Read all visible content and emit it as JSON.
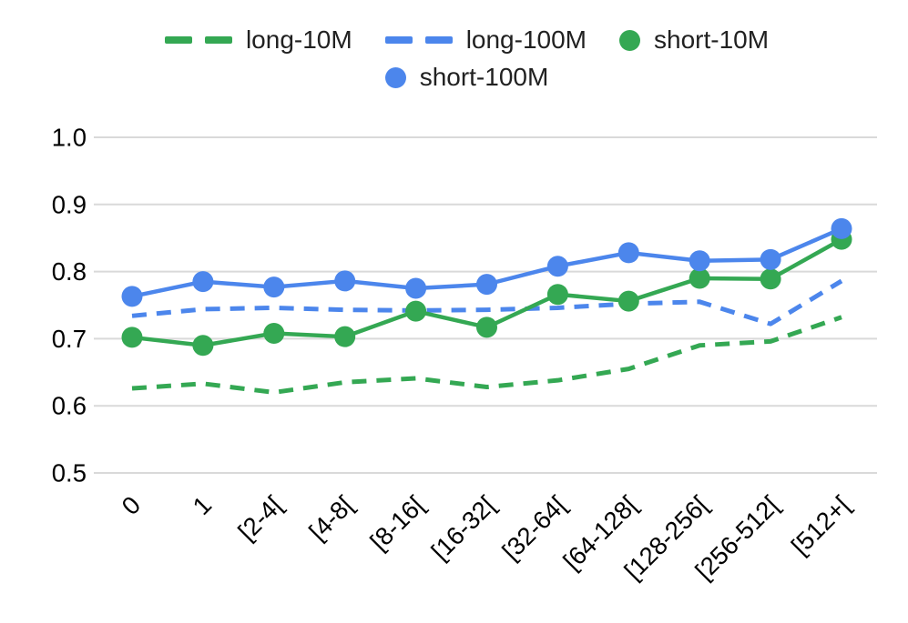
{
  "chart_data": {
    "type": "line",
    "title": "",
    "categories": [
      "0",
      "1",
      "[2-4[",
      "[4-8[",
      "[8-16[",
      "[16-32[",
      "[32-64[",
      "[64-128[",
      "[128-256[",
      "[256-512[",
      "[512+["
    ],
    "series": [
      {
        "name": "long-10M",
        "color": "#34a853",
        "line_style": "dashed",
        "point_markers": false,
        "values": [
          0.626,
          0.633,
          0.62,
          0.635,
          0.641,
          0.628,
          0.638,
          0.655,
          0.69,
          0.696,
          0.732
        ]
      },
      {
        "name": "long-100M",
        "color": "#4c86ec",
        "line_style": "dashed",
        "point_markers": false,
        "values": [
          0.734,
          0.744,
          0.746,
          0.743,
          0.742,
          0.743,
          0.746,
          0.752,
          0.755,
          0.722,
          0.786
        ]
      },
      {
        "name": "short-10M",
        "color": "#34a853",
        "line_style": "solid",
        "point_markers": true,
        "values": [
          0.702,
          0.69,
          0.708,
          0.703,
          0.741,
          0.717,
          0.766,
          0.756,
          0.79,
          0.789,
          0.848
        ]
      },
      {
        "name": "short-100M",
        "color": "#4c86ec",
        "line_style": "solid",
        "point_markers": true,
        "values": [
          0.763,
          0.785,
          0.777,
          0.786,
          0.775,
          0.781,
          0.808,
          0.828,
          0.816,
          0.818,
          0.864
        ]
      }
    ],
    "xlabel": "",
    "ylabel": "",
    "ylim": [
      0.5,
      1.0
    ],
    "yticks": [
      1.0,
      0.9,
      0.8,
      0.7,
      0.6,
      0.5
    ],
    "ytick_labels": [
      "1.0",
      "0.9",
      "0.8",
      "0.7",
      "0.6",
      "0.5"
    ],
    "xtick_rotation_deg": -45,
    "grid": true,
    "legend_position": "top",
    "legend_rows": [
      [
        "long-10M",
        "long-100M",
        "short-10M"
      ],
      [
        "short-100M"
      ]
    ],
    "colors": {
      "background": "#ffffff",
      "gridline": "#d9d9d9",
      "axis_text": "#000000",
      "legend_text": "#212121",
      "series_green": "#34a853",
      "series_blue": "#4c86ec"
    }
  }
}
